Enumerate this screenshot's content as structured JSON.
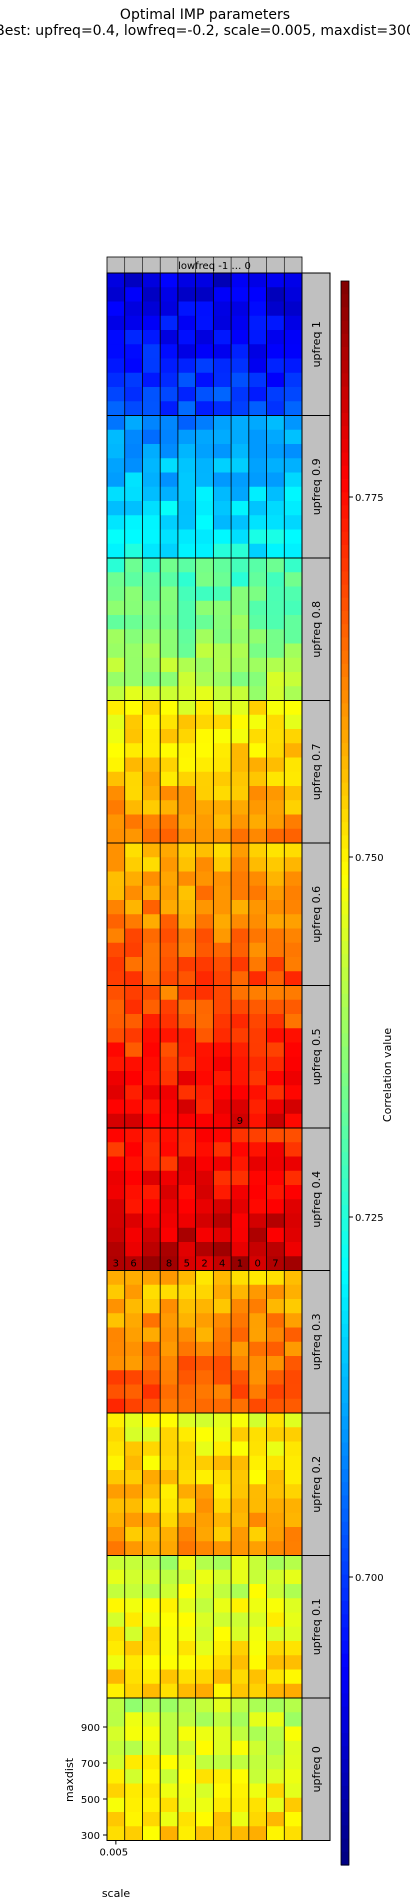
{
  "chart_data": {
    "type": "heatmap",
    "title": "Optimal IMP parameters",
    "subtitle": "Best: upfreq=0.4, lowfreq=-0.2, scale=0.005, maxdist=300",
    "panel_labels": [
      "upfreq 1",
      "upfreq 0.9",
      "upfreq 0.8",
      "upfreq 0.7",
      "upfreq 0.6",
      "upfreq 0.5",
      "upfreq 0.4",
      "upfreq 0.3",
      "upfreq 0.2",
      "upfreq 0.1",
      "upfreq 0"
    ],
    "column_header": "lowfreq -1 … 0",
    "xlabel": "scale",
    "xticks": [
      "0.005"
    ],
    "ylabel": "maxdist",
    "yticks": [
      "900",
      "700",
      "500",
      "300"
    ],
    "colorbar": {
      "label": "Correlation value",
      "ticks": [
        "0.700",
        "0.725",
        "0.750",
        "0.775"
      ],
      "range": [
        0.68,
        0.79
      ],
      "colormap": "jet"
    },
    "panel_mean_values": [
      0.695,
      0.715,
      0.735,
      0.755,
      0.762,
      0.772,
      0.778,
      0.762,
      0.754,
      0.748,
      0.747
    ],
    "rank_markers": [
      {
        "panel": "upfreq 0.5",
        "label": "9"
      },
      {
        "panel": "upfreq 0.4",
        "labels": [
          "3",
          "6",
          "8",
          "5",
          "2",
          "4",
          "1",
          "0",
          "7"
        ]
      }
    ]
  },
  "colors": {
    "panel_background": "#c0c0c0",
    "grid_line": "#000000"
  }
}
